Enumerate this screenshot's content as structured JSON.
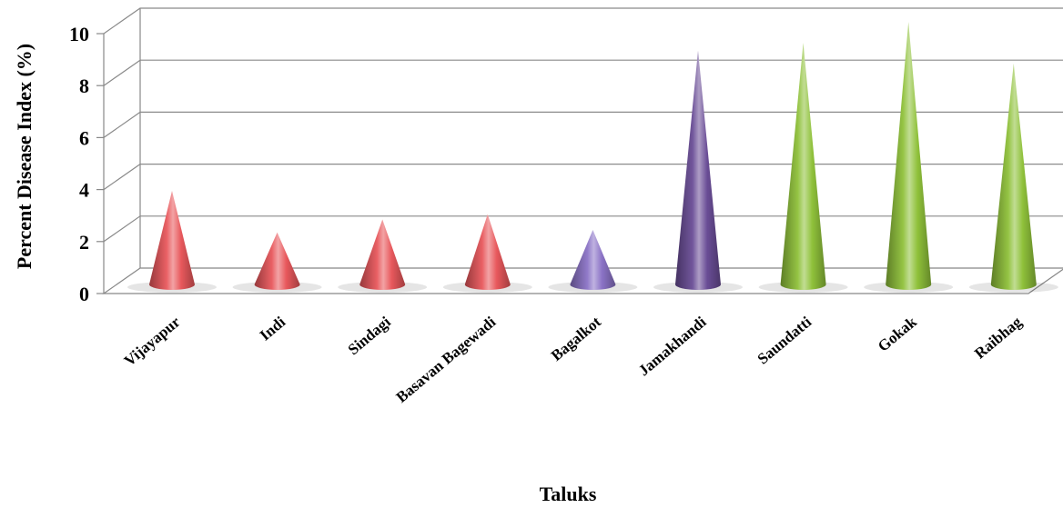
{
  "chart_data": {
    "type": "bar",
    "style": "3d-cone",
    "xlabel": "Taluks",
    "ylabel": "Percent Disease Index (%)",
    "ylim": [
      0,
      10
    ],
    "yticks": [
      "0",
      "2",
      "4",
      "6",
      "8",
      "10"
    ],
    "grid": true,
    "categories": [
      "Vijayapur",
      "Indi",
      "Sindagi",
      "Basavan Bagewadi",
      "Bagalkot",
      "Jamakhandi",
      "Saundatti",
      "Gokak",
      "Raibhag"
    ],
    "values": [
      3.6,
      2.0,
      2.5,
      2.7,
      2.1,
      9.0,
      9.3,
      10.1,
      8.5
    ],
    "colors": [
      "#e8585c",
      "#e8585c",
      "#e8585c",
      "#e8585c",
      "#8b73c6",
      "#6a4d96",
      "#8fc13a",
      "#8fc13a",
      "#8fc13a"
    ]
  }
}
